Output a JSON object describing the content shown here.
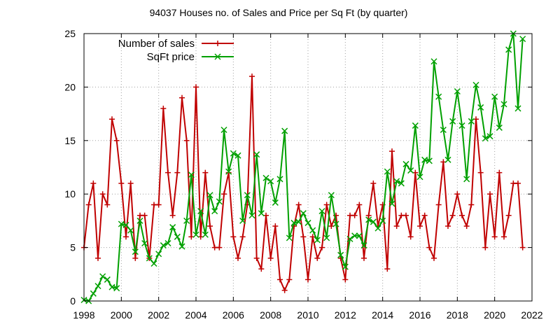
{
  "chart_data": {
    "type": "line",
    "title": "94037 Houses no. of Sales and Price per Sq Ft (by quarter)",
    "xlabel": "",
    "ylabel": "",
    "xlim": [
      1998,
      2022
    ],
    "ylim": [
      0,
      25
    ],
    "x_ticks": [
      1998,
      2000,
      2002,
      2004,
      2006,
      2008,
      2010,
      2012,
      2014,
      2016,
      2018,
      2020,
      2022
    ],
    "y_ticks": [
      0,
      5,
      10,
      15,
      20,
      25
    ],
    "grid": true,
    "legend_position": "top-left",
    "series": [
      {
        "name": "Number of sales",
        "color": "#c00000",
        "marker": "plus",
        "points": [
          [
            1998.0,
            5
          ],
          [
            1998.25,
            9
          ],
          [
            1998.5,
            11
          ],
          [
            1998.75,
            4
          ],
          [
            1999.0,
            10
          ],
          [
            1999.25,
            9
          ],
          [
            1999.5,
            17
          ],
          [
            1999.75,
            15
          ],
          [
            2000.0,
            11
          ],
          [
            2000.25,
            6
          ],
          [
            2000.5,
            11
          ],
          [
            2000.75,
            4
          ],
          [
            2001.0,
            8
          ],
          [
            2001.25,
            8
          ],
          [
            2001.5,
            4
          ],
          [
            2001.75,
            9
          ],
          [
            2002.0,
            9
          ],
          [
            2002.25,
            18
          ],
          [
            2002.5,
            12
          ],
          [
            2002.75,
            8
          ],
          [
            2003.0,
            12
          ],
          [
            2003.25,
            19
          ],
          [
            2003.5,
            15
          ],
          [
            2003.75,
            6
          ],
          [
            2004.0,
            20
          ],
          [
            2004.25,
            6
          ],
          [
            2004.5,
            12
          ],
          [
            2004.75,
            7
          ],
          [
            2005.0,
            5
          ],
          [
            2005.25,
            5
          ],
          [
            2005.5,
            10
          ],
          [
            2005.75,
            12
          ],
          [
            2006.0,
            6
          ],
          [
            2006.25,
            4
          ],
          [
            2006.5,
            6
          ],
          [
            2006.75,
            9
          ],
          [
            2007.0,
            21
          ],
          [
            2007.25,
            4
          ],
          [
            2007.5,
            3
          ],
          [
            2007.75,
            8
          ],
          [
            2008.0,
            4
          ],
          [
            2008.25,
            7
          ],
          [
            2008.5,
            2
          ],
          [
            2008.75,
            1
          ],
          [
            2009.0,
            2
          ],
          [
            2009.25,
            7
          ],
          [
            2009.5,
            9
          ],
          [
            2009.75,
            6
          ],
          [
            2010.0,
            2
          ],
          [
            2010.25,
            6
          ],
          [
            2010.5,
            4
          ],
          [
            2010.75,
            5
          ],
          [
            2011.0,
            9
          ],
          [
            2011.25,
            7
          ],
          [
            2011.5,
            8
          ],
          [
            2011.75,
            4
          ],
          [
            2012.0,
            2
          ],
          [
            2012.25,
            8
          ],
          [
            2012.5,
            8
          ],
          [
            2012.75,
            9
          ],
          [
            2013.0,
            4
          ],
          [
            2013.25,
            8
          ],
          [
            2013.5,
            11
          ],
          [
            2013.75,
            7
          ],
          [
            2014.0,
            9
          ],
          [
            2014.25,
            3
          ],
          [
            2014.5,
            14
          ],
          [
            2014.75,
            7
          ],
          [
            2015.0,
            8
          ],
          [
            2015.25,
            8
          ],
          [
            2015.5,
            6
          ],
          [
            2015.75,
            12
          ],
          [
            2016.0,
            7
          ],
          [
            2016.25,
            8
          ],
          [
            2016.5,
            5
          ],
          [
            2016.75,
            4
          ],
          [
            2017.0,
            9
          ],
          [
            2017.25,
            13
          ],
          [
            2017.5,
            7
          ],
          [
            2017.75,
            8
          ],
          [
            2018.0,
            10
          ],
          [
            2018.25,
            8
          ],
          [
            2018.5,
            7
          ],
          [
            2018.75,
            9
          ],
          [
            2019.0,
            17
          ],
          [
            2019.25,
            12
          ],
          [
            2019.5,
            5
          ],
          [
            2019.75,
            10
          ],
          [
            2020.0,
            6
          ],
          [
            2020.25,
            12
          ],
          [
            2020.5,
            6
          ],
          [
            2020.75,
            8
          ],
          [
            2021.0,
            11
          ],
          [
            2021.25,
            11
          ],
          [
            2021.5,
            5
          ]
        ]
      },
      {
        "name": "SqFt price",
        "color": "#00a000",
        "marker": "cross",
        "points": [
          [
            1998.0,
            0.1
          ],
          [
            1998.25,
            0.0
          ],
          [
            1998.5,
            0.7
          ],
          [
            1998.75,
            1.4
          ],
          [
            1999.0,
            2.3
          ],
          [
            1999.25,
            2.0
          ],
          [
            1999.5,
            1.3
          ],
          [
            1999.75,
            1.2
          ],
          [
            2000.0,
            7.2
          ],
          [
            2000.25,
            7.1
          ],
          [
            2000.5,
            6.6
          ],
          [
            2000.75,
            4.6
          ],
          [
            2001.0,
            7.5
          ],
          [
            2001.25,
            5.4
          ],
          [
            2001.5,
            4.0
          ],
          [
            2001.75,
            3.5
          ],
          [
            2002.0,
            4.4
          ],
          [
            2002.25,
            5.2
          ],
          [
            2002.5,
            5.4
          ],
          [
            2002.75,
            6.9
          ],
          [
            2003.0,
            6.0
          ],
          [
            2003.25,
            5.1
          ],
          [
            2003.5,
            7.5
          ],
          [
            2003.75,
            11.8
          ],
          [
            2004.0,
            6.2
          ],
          [
            2004.25,
            8.4
          ],
          [
            2004.5,
            6.2
          ],
          [
            2004.75,
            9.9
          ],
          [
            2005.0,
            8.4
          ],
          [
            2005.25,
            9.3
          ],
          [
            2005.5,
            16.0
          ],
          [
            2005.75,
            12.1
          ],
          [
            2006.0,
            13.8
          ],
          [
            2006.25,
            13.6
          ],
          [
            2006.5,
            7.5
          ],
          [
            2006.75,
            9.9
          ],
          [
            2007.0,
            8.0
          ],
          [
            2007.25,
            13.7
          ],
          [
            2007.5,
            8.2
          ],
          [
            2007.75,
            11.5
          ],
          [
            2008.0,
            11.2
          ],
          [
            2008.25,
            9.2
          ],
          [
            2008.5,
            11.4
          ],
          [
            2008.75,
            15.9
          ],
          [
            2009.0,
            5.9
          ],
          [
            2009.25,
            7.3
          ],
          [
            2009.5,
            7.4
          ],
          [
            2009.75,
            8.2
          ],
          [
            2010.0,
            7.3
          ],
          [
            2010.25,
            6.6
          ],
          [
            2010.5,
            5.7
          ],
          [
            2010.75,
            8.4
          ],
          [
            2011.0,
            5.9
          ],
          [
            2011.25,
            9.9
          ],
          [
            2011.5,
            7.2
          ],
          [
            2011.75,
            4.3
          ],
          [
            2012.0,
            3.2
          ],
          [
            2012.25,
            5.8
          ],
          [
            2012.5,
            6.1
          ],
          [
            2012.75,
            6.1
          ],
          [
            2013.0,
            5.2
          ],
          [
            2013.25,
            7.6
          ],
          [
            2013.5,
            7.4
          ],
          [
            2013.75,
            6.8
          ],
          [
            2014.0,
            7.5
          ],
          [
            2014.25,
            12.1
          ],
          [
            2014.5,
            9.1
          ],
          [
            2014.75,
            11.2
          ],
          [
            2015.0,
            11.0
          ],
          [
            2015.25,
            12.8
          ],
          [
            2015.5,
            12.2
          ],
          [
            2015.75,
            16.4
          ],
          [
            2016.0,
            11.6
          ],
          [
            2016.25,
            13.2
          ],
          [
            2016.5,
            13.1
          ],
          [
            2016.75,
            22.4
          ],
          [
            2017.0,
            19.1
          ],
          [
            2017.25,
            16.0
          ],
          [
            2017.5,
            13.2
          ],
          [
            2017.75,
            16.8
          ],
          [
            2018.0,
            19.6
          ],
          [
            2018.25,
            16.4
          ],
          [
            2018.5,
            11.4
          ],
          [
            2018.75,
            16.8
          ],
          [
            2019.0,
            20.2
          ],
          [
            2019.25,
            18.1
          ],
          [
            2019.5,
            15.2
          ],
          [
            2019.75,
            15.4
          ],
          [
            2020.0,
            19.1
          ],
          [
            2020.25,
            16.2
          ],
          [
            2020.5,
            18.4
          ],
          [
            2020.75,
            23.5
          ],
          [
            2021.0,
            25.0
          ],
          [
            2021.25,
            18.0
          ],
          [
            2021.5,
            24.5
          ]
        ]
      }
    ]
  }
}
